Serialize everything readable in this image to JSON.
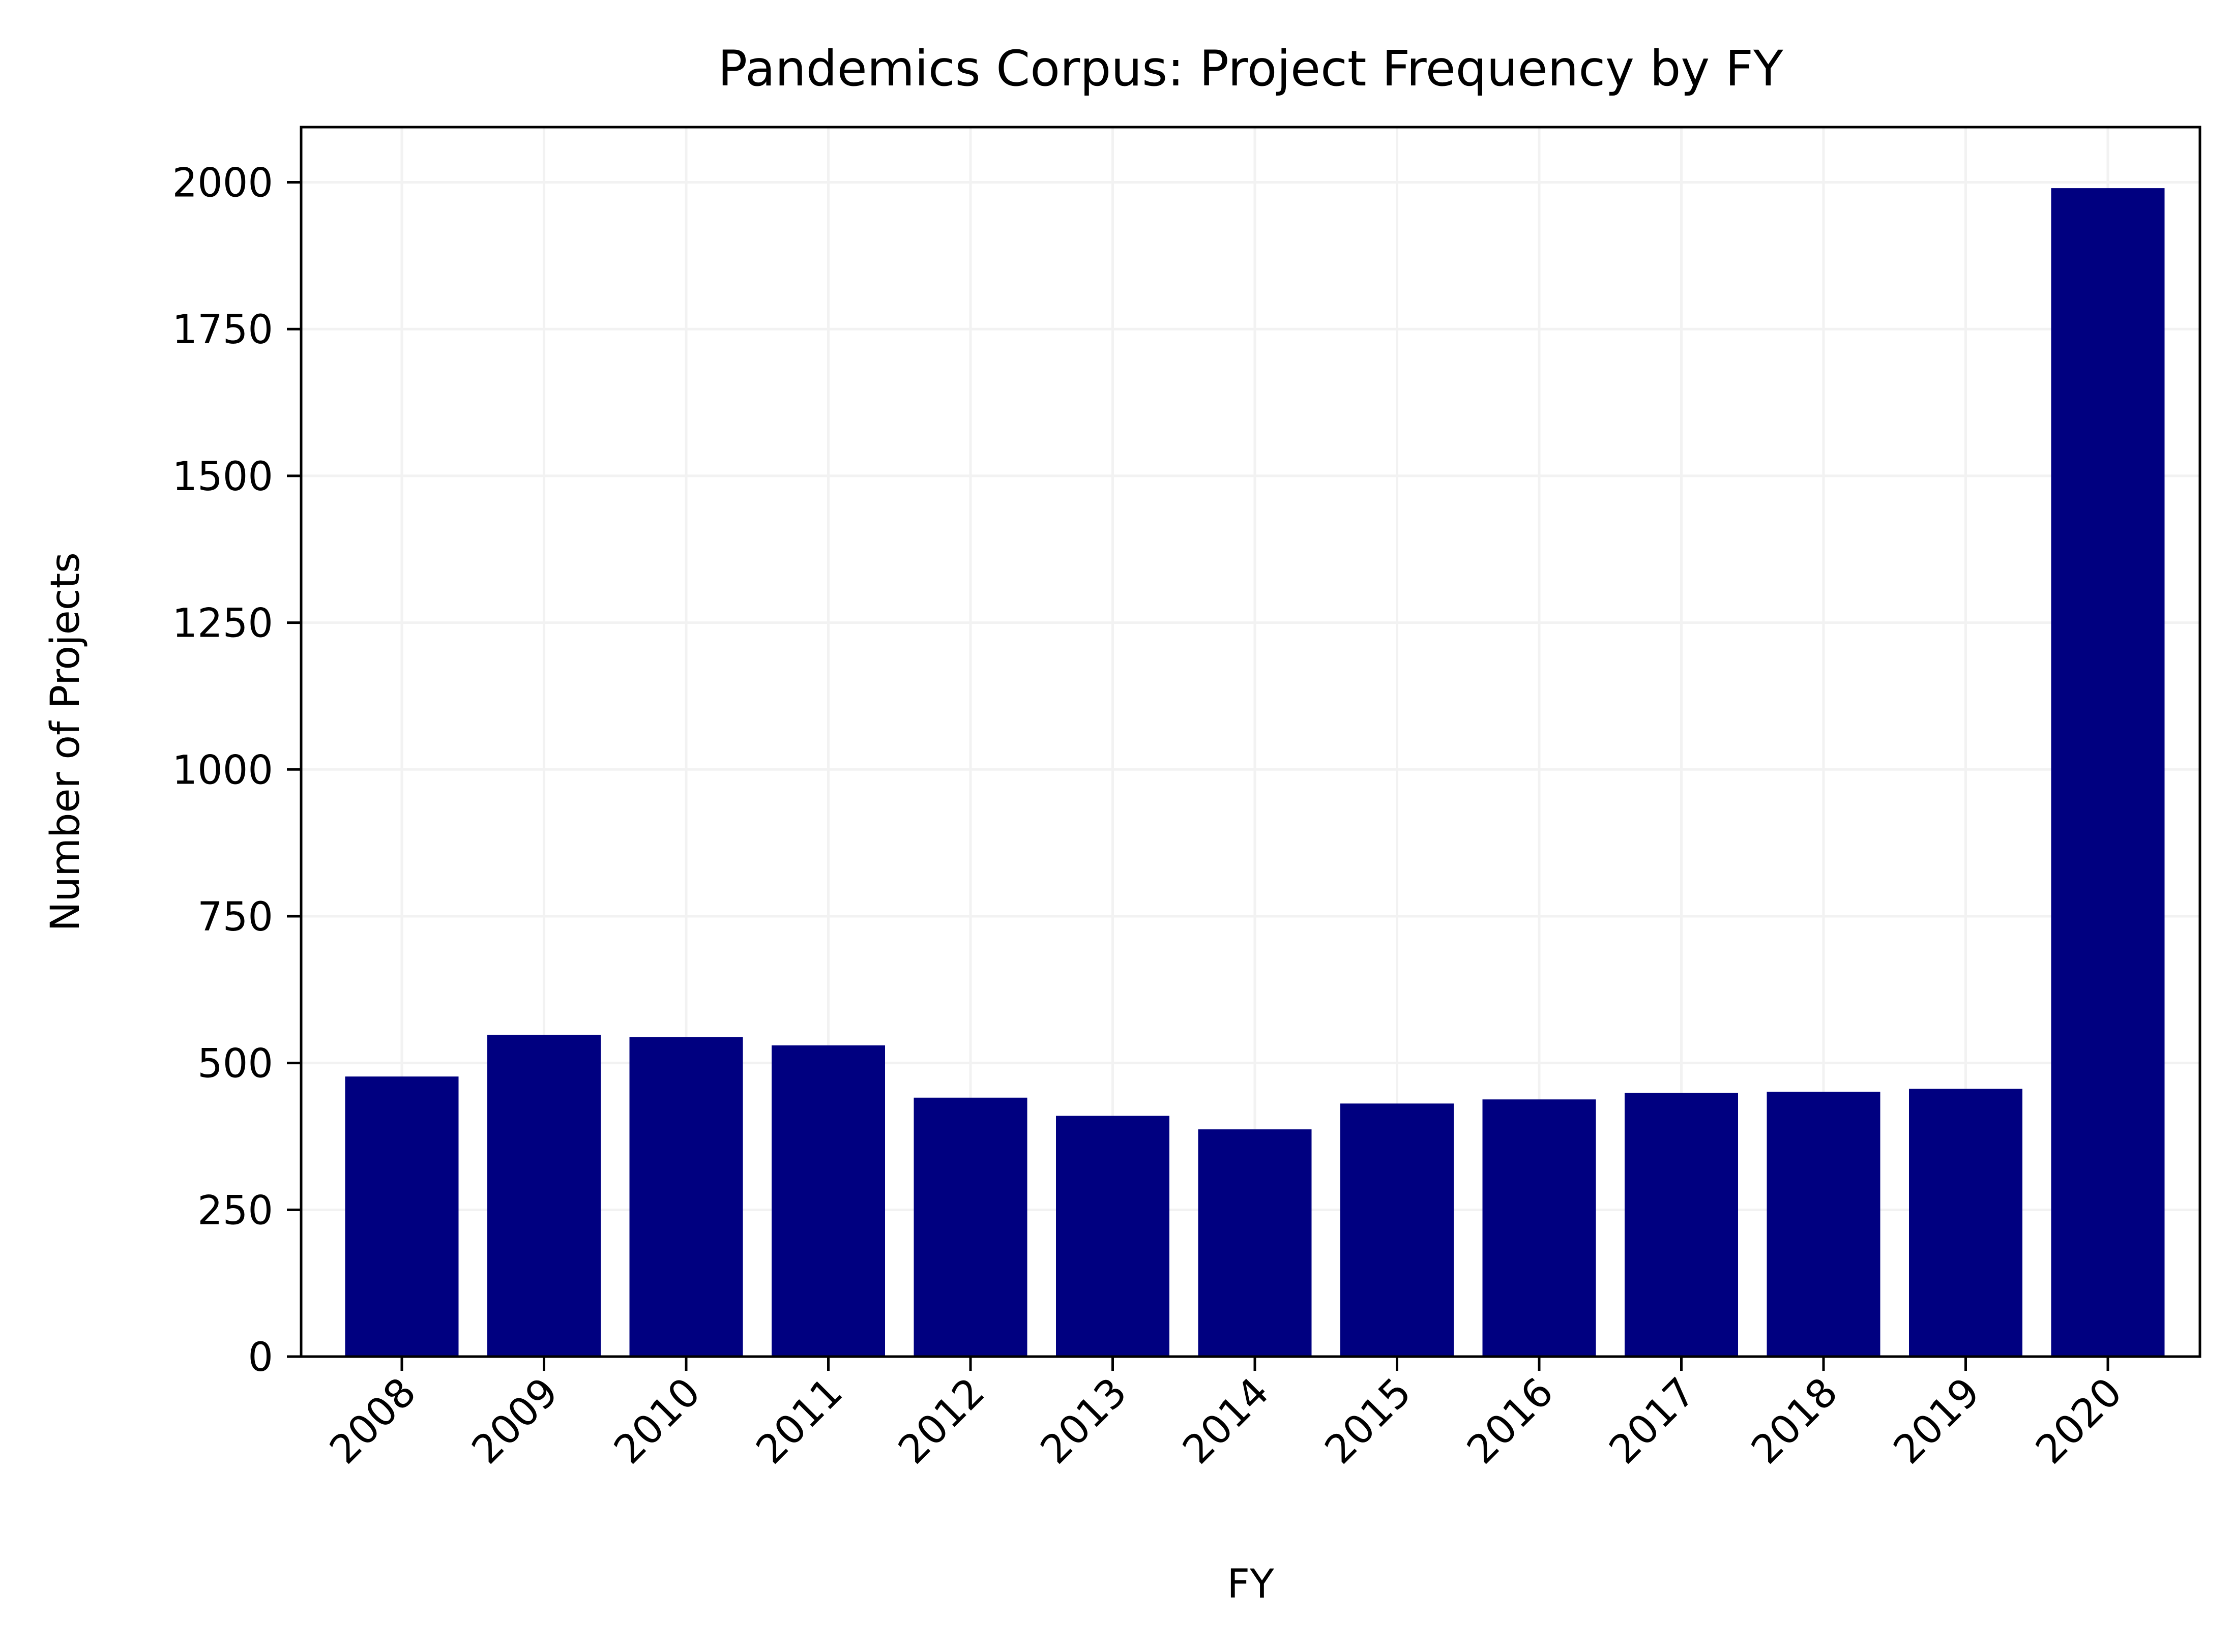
{
  "chart_data": {
    "type": "bar",
    "title": "Pandemics Corpus: Project Frequency by FY",
    "xlabel": "FY",
    "ylabel": "Number of Projects",
    "categories": [
      "2008",
      "2009",
      "2010",
      "2011",
      "2012",
      "2013",
      "2014",
      "2015",
      "2016",
      "2017",
      "2018",
      "2019",
      "2020"
    ],
    "values": [
      477,
      548,
      544,
      530,
      441,
      410,
      387,
      431,
      438,
      449,
      451,
      456,
      1990
    ],
    "ylim": [
      0,
      2094
    ],
    "yticks": [
      0,
      250,
      500,
      750,
      1000,
      1250,
      1500,
      1750,
      2000
    ],
    "xtick_rotation": 45,
    "grid": true,
    "bar_color": "#000080",
    "grid_color": "#f2f2f2"
  }
}
